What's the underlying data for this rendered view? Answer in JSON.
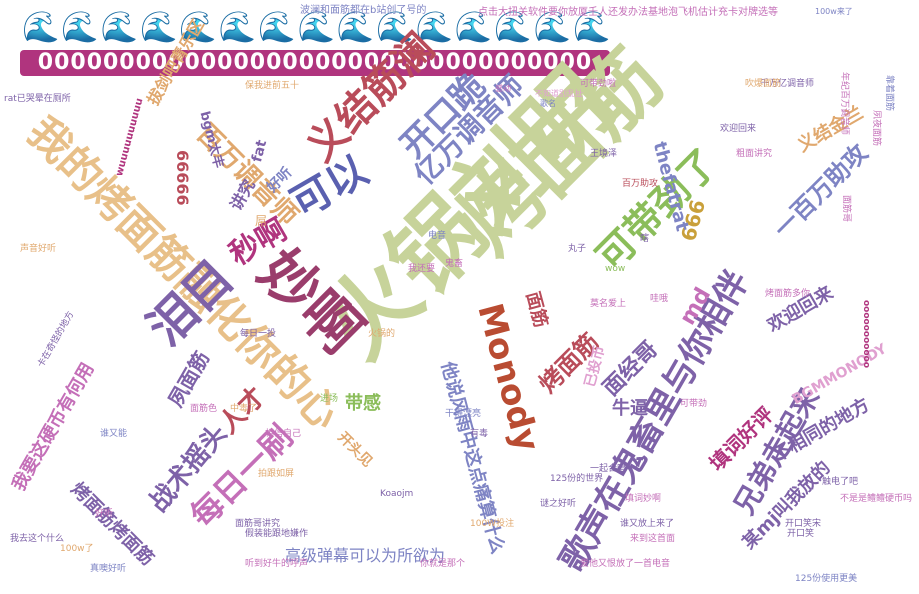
{
  "top_emoji_row": "🌊🌊🌊🌊🌊🌊🌊🌊🌊🌊🌊🌊🌊🌊🌊",
  "zero_row": "0000000000000000000000000000000000",
  "header_phrases": {
    "left": "波澜和面筋都在b站创了号的",
    "right": "点击大扭关软件要你放厦壬人还发办法基地泡飞机估计充卡对牌选等"
  },
  "words": [
    {
      "text": "火锅刘明",
      "color": "#c7d39a"
    },
    {
      "text": "烤面筋",
      "color": "#c7d39a"
    },
    {
      "text": "我的烤面筋融化你的心",
      "color": "#e8c089"
    },
    {
      "text": "义结筋澜",
      "color": "#b94c5a"
    },
    {
      "text": "妙啊",
      "color": "#9a3d6c"
    },
    {
      "text": "Monody",
      "color": "#b94c32"
    },
    {
      "text": "歌声在鬼畜里与你相伴",
      "color": "#7e62a8"
    },
    {
      "text": "可以",
      "color": "#5a60b0"
    },
    {
      "text": "开口跪",
      "color": "#7e84c4"
    },
    {
      "text": "亿万调音师",
      "color": "#7e84c4"
    },
    {
      "text": "百万调音师",
      "color": "#e0a86e"
    },
    {
      "text": "泪目",
      "color": "#7e62a8"
    },
    {
      "text": "秒啊",
      "color": "#b0347e"
    },
    {
      "text": "可带劲了",
      "color": "#8bbd5a"
    },
    {
      "text": "兄弟走起来",
      "color": "#7e62a8"
    },
    {
      "text": "每日一刷",
      "color": "#c46fb8"
    },
    {
      "text": "战术摇头",
      "color": "#7e62a8"
    },
    {
      "text": "高级弹幕可以为所欲为",
      "color": "#7e84c4"
    },
    {
      "text": "一百万助攻",
      "color": "#7e84c4"
    },
    {
      "text": "义结金兰",
      "color": "#e0a86e"
    },
    {
      "text": "欢迎回来",
      "color": "#7e62a8"
    },
    {
      "text": "面经哥",
      "color": "#7e62a8"
    },
    {
      "text": "烤面筋",
      "color": "#b94c5a"
    },
    {
      "text": "人才",
      "color": "#b94c5a"
    },
    {
      "text": "666",
      "color": "#c9a03a"
    },
    {
      "text": "md",
      "color": "#c46fb8"
    },
    {
      "text": "不相同的地方",
      "color": "#7e62a8"
    },
    {
      "text": "填词好评",
      "color": "#b0347e"
    },
    {
      "text": "BGMMONODY",
      "color": "#e0a0d0"
    },
    {
      "text": "带感",
      "color": "#8bbd5a"
    },
    {
      "text": "牛逼",
      "color": "#7e62a8"
    },
    {
      "text": "他说风雨中这点痛算什么",
      "color": "#7e84c4"
    },
    {
      "text": "面筋",
      "color": "#b94c5a"
    },
    {
      "text": "已投币",
      "color": "#e0a0d0"
    },
    {
      "text": "开头见",
      "color": "#e0a86e"
    },
    {
      "text": "夙面筋",
      "color": "#7e62a8"
    },
    {
      "text": "我要这硬币有何用",
      "color": "#c46fb8"
    },
    {
      "text": "烤面筋烤面筋",
      "color": "#7e62a8"
    },
    {
      "text": "拔剑吧青乐区",
      "color": "#e0a86e"
    },
    {
      "text": "讲究",
      "color": "#7e62a8"
    },
    {
      "text": "好听",
      "color": "#7e84c4"
    },
    {
      "text": "bgm太丰",
      "color": "#7e62a8"
    },
    {
      "text": "66666",
      "color": "#b94c5a"
    },
    {
      "text": "thefatrat",
      "color": "#7e84c4"
    },
    {
      "text": "fat",
      "color": "#7e62a8"
    },
    {
      "text": "某mj叫我放的",
      "color": "#7e62a8"
    },
    {
      "text": "rat已哭晕在厕所",
      "color": "#7e62a8"
    },
    {
      "text": "保我进前五十",
      "color": "#e0a86e"
    },
    {
      "text": "屌",
      "color": "#e0a86e"
    },
    {
      "text": "千万亿调音师",
      "color": "#7e62a8"
    },
    {
      "text": "年纪百万调音师",
      "color": "#c46fb8"
    },
    {
      "text": "靠着面筋",
      "color": "#7e84c4"
    },
    {
      "text": "夙夜面筋",
      "color": "#c46fb8"
    },
    {
      "text": "100w来了",
      "color": "#7e84c4"
    },
    {
      "text": "可带劲啦",
      "color": "#c46fb8"
    },
    {
      "text": "歌名",
      "color": "#7e84c4"
    },
    {
      "text": "不知道别乱扯",
      "color": "#e0a0d0"
    },
    {
      "text": "感动",
      "color": "#c46fb8"
    },
    {
      "text": "百万助攻",
      "color": "#b94c5a"
    },
    {
      "text": "王境泽",
      "color": "#7e62a8"
    },
    {
      "text": "粗面讲究",
      "color": "#c46fb8"
    },
    {
      "text": "面筋哥",
      "color": "#c46fb8"
    },
    {
      "text": "吹爆面筋",
      "color": "#e0a86e"
    },
    {
      "text": "鬼畜",
      "color": "#c46fb8"
    },
    {
      "text": "我还要",
      "color": "#c46fb8"
    },
    {
      "text": "丸子",
      "color": "#7e62a8"
    },
    {
      "text": "wow",
      "color": "#8bbd5a"
    },
    {
      "text": "中毒了",
      "color": "#e0a86e"
    },
    {
      "text": "每日一投",
      "color": "#7e62a8"
    },
    {
      "text": "面筋色",
      "color": "#c46fb8"
    },
    {
      "text": "进场",
      "color": "#8bbd5a"
    },
    {
      "text": "谁又能",
      "color": "#7e84c4"
    },
    {
      "text": "卡在奇怪的地方",
      "color": "#7e62a8"
    },
    {
      "text": "声音好听",
      "color": "#e0a86e"
    },
    {
      "text": "谜之好听",
      "color": "#7e62a8"
    },
    {
      "text": "填词妙啊",
      "color": "#c46fb8"
    },
    {
      "text": "谁又放上来了",
      "color": "#7e62a8"
    },
    {
      "text": "来到这首面",
      "color": "#c46fb8"
    },
    {
      "text": "爱他又恨放了一首电音",
      "color": "#c46fb8"
    },
    {
      "text": "开口笑",
      "color": "#7e62a8"
    },
    {
      "text": "开口笑宋",
      "color": "#7e62a8"
    },
    {
      "text": "拍跟如屏",
      "color": "#e0a86e"
    },
    {
      "text": "相信自己",
      "color": "#c46fb8"
    },
    {
      "text": "面筋哥讲究",
      "color": "#7e62a8"
    },
    {
      "text": "Koaojm",
      "color": "#7e62a8"
    },
    {
      "text": "100W投注",
      "color": "#e0a86e"
    },
    {
      "text": "125份的世界",
      "color": "#7e62a8"
    },
    {
      "text": "125份使用更美",
      "color": "#7e84c4"
    },
    {
      "text": "触电了吧",
      "color": "#7e62a8"
    },
    {
      "text": "不是是鳢鳢硬币吗",
      "color": "#c46fb8"
    },
    {
      "text": "假装能跟地嫌作",
      "color": "#7e62a8"
    },
    {
      "text": "听到好牛的呼声",
      "color": "#c46fb8"
    },
    {
      "text": "我去这个什么",
      "color": "#7e62a8"
    },
    {
      "text": "真噢好听",
      "color": "#7e84c4"
    },
    {
      "text": "100w了",
      "color": "#e0a86e"
    },
    {
      "text": "你就是那个",
      "color": "#c46fb8"
    },
    {
      "text": "烤面筋多你",
      "color": "#c46fb8"
    },
    {
      "text": "欢迎回来",
      "color": "#7e62a8"
    },
    {
      "text": "莫名爱上",
      "color": "#c46fb8"
    },
    {
      "text": "一起合唱",
      "color": "#7e62a8"
    },
    {
      "text": "电音",
      "color": "#7e84c4"
    },
    {
      "text": "可带劲",
      "color": "#c46fb8"
    },
    {
      "text": "火锅的",
      "color": "#e0a86e"
    },
    {
      "text": "瞎",
      "color": "#7e62a8"
    },
    {
      "text": "哇哦",
      "color": "#c46fb8"
    },
    {
      "text": "干得漂亮",
      "color": "#7e84c4"
    },
    {
      "text": "wuuuuuuuuuu",
      "color": "#b0347e"
    },
    {
      "text": "ooooooooooo",
      "color": "#b0347e"
    },
    {
      "text": "好听",
      "color": "#c46fb8"
    },
    {
      "text": "有毒",
      "color": "#7e62a8"
    }
  ]
}
